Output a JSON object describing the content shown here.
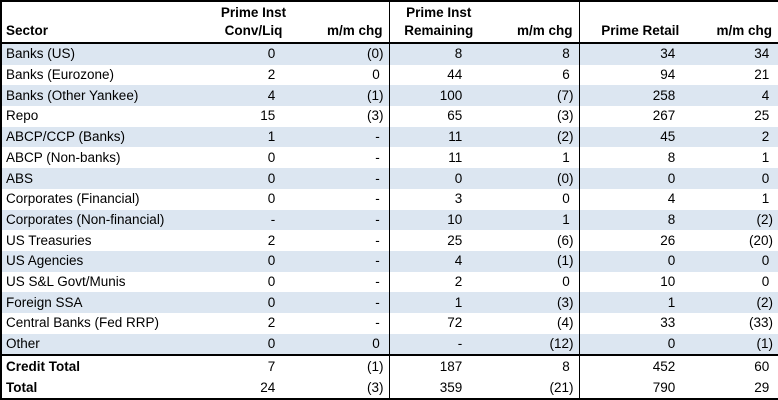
{
  "colors": {
    "band": "#dce6f1",
    "border": "#000000",
    "text": "#000000",
    "background": "#ffffff"
  },
  "chart_data": {
    "type": "table",
    "columns": [
      {
        "id": "sector",
        "label": "Sector",
        "label_top": ""
      },
      {
        "id": "prime_inst_conv_liq",
        "label_top": "Prime Inst",
        "label": "Conv/Liq"
      },
      {
        "id": "mm_chg_conv_liq",
        "label_top": "",
        "label": "m/m chg"
      },
      {
        "id": "prime_inst_remaining",
        "label_top": "Prime Inst",
        "label": "Remaining"
      },
      {
        "id": "mm_chg_remaining",
        "label_top": "",
        "label": "m/m chg"
      },
      {
        "id": "prime_retail",
        "label_top": "",
        "label": "Prime Retail"
      },
      {
        "id": "mm_chg_retail",
        "label_top": "",
        "label": "m/m chg"
      }
    ],
    "rows": [
      {
        "sector": "Banks (US)",
        "values": [
          "0",
          "(0)",
          "8",
          "8",
          "34",
          "34"
        ]
      },
      {
        "sector": "Banks (Eurozone)",
        "values": [
          "2",
          "0",
          "44",
          "6",
          "94",
          "21"
        ]
      },
      {
        "sector": "Banks (Other Yankee)",
        "values": [
          "4",
          "(1)",
          "100",
          "(7)",
          "258",
          "4"
        ]
      },
      {
        "sector": "Repo",
        "values": [
          "15",
          "(3)",
          "65",
          "(3)",
          "267",
          "25"
        ]
      },
      {
        "sector": "ABCP/CCP (Banks)",
        "values": [
          "1",
          "-",
          "11",
          "(2)",
          "45",
          "2"
        ]
      },
      {
        "sector": "ABCP (Non-banks)",
        "values": [
          "0",
          "-",
          "11",
          "1",
          "8",
          "1"
        ]
      },
      {
        "sector": "ABS",
        "values": [
          "0",
          "-",
          "0",
          "(0)",
          "0",
          "0"
        ]
      },
      {
        "sector": "Corporates (Financial)",
        "values": [
          "0",
          "-",
          "3",
          "0",
          "4",
          "1"
        ]
      },
      {
        "sector": "Corporates (Non-financial)",
        "values": [
          "-",
          "-",
          "10",
          "1",
          "8",
          "(2)"
        ]
      },
      {
        "sector": "US Treasuries",
        "values": [
          "2",
          "-",
          "25",
          "(6)",
          "26",
          "(20)"
        ]
      },
      {
        "sector": "US Agencies",
        "values": [
          "0",
          "-",
          "4",
          "(1)",
          "0",
          "0"
        ]
      },
      {
        "sector": "US S&L Govt/Munis",
        "values": [
          "0",
          "-",
          "2",
          "0",
          "10",
          "0"
        ]
      },
      {
        "sector": "Foreign SSA",
        "values": [
          "0",
          "-",
          "1",
          "(3)",
          "1",
          "(2)"
        ]
      },
      {
        "sector": "Central Banks (Fed RRP)",
        "values": [
          "2",
          "-",
          "72",
          "(4)",
          "33",
          "(33)"
        ]
      },
      {
        "sector": "Other",
        "values": [
          "0",
          "0",
          "-",
          "(12)",
          "0",
          "(1)"
        ]
      }
    ],
    "total_rows": [
      {
        "sector": "Credit Total",
        "values": [
          "7",
          "(1)",
          "187",
          "8",
          "452",
          "60"
        ]
      },
      {
        "sector": "Total",
        "values": [
          "24",
          "(3)",
          "359",
          "(21)",
          "790",
          "29"
        ]
      }
    ]
  }
}
